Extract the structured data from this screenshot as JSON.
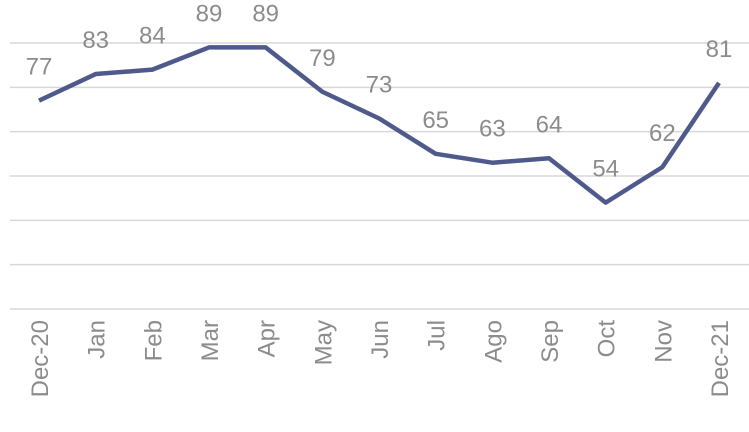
{
  "chart_data": {
    "type": "line",
    "categories": [
      "Dec-20",
      "Jan",
      "Feb",
      "Mar",
      "Apr",
      "May",
      "Jun",
      "Jul",
      "Ago",
      "Sep",
      "Oct",
      "Nov",
      "Dec-21"
    ],
    "series": [
      {
        "color": "#4f5a8c",
        "values": [
          77,
          83,
          84,
          89,
          89,
          79,
          73,
          65,
          63,
          64,
          54,
          62,
          81
        ]
      }
    ],
    "ylim": [
      30,
      90
    ],
    "yticks": [
      30,
      40,
      50,
      60,
      70,
      80,
      90
    ],
    "grid": true
  }
}
